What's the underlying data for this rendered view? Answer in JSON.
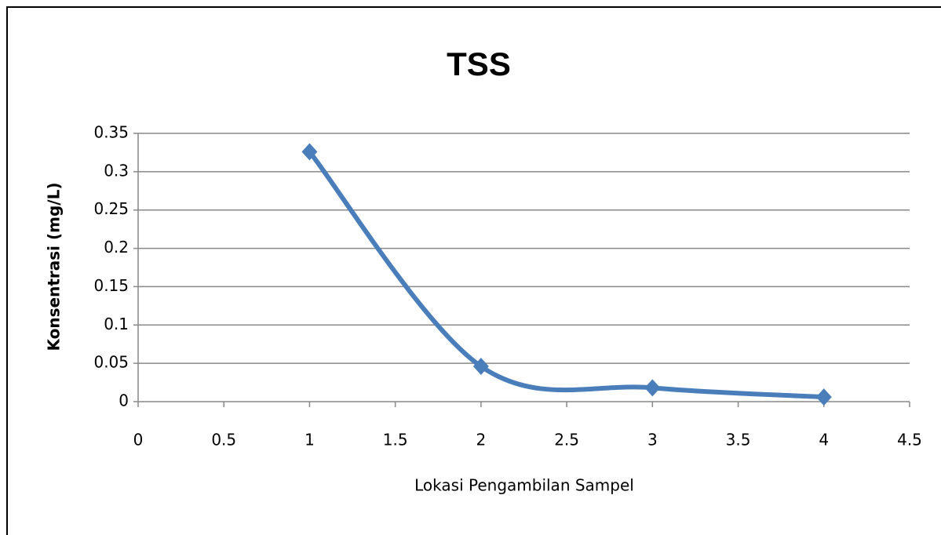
{
  "chart_data": {
    "type": "scatter",
    "title": "TSS",
    "x_label": "Lokasi Pengambilan  Sampel",
    "y_label": "Konsentrasi (mg/L)",
    "series": [
      {
        "name": "TSS",
        "color": "#4a7ebb",
        "x": [
          1,
          2,
          3,
          4
        ],
        "values": [
          0.326,
          0.046,
          0.018,
          0.006
        ]
      }
    ],
    "xlim": [
      0,
      4.5
    ],
    "xticks": [
      0,
      0.5,
      1,
      1.5,
      2,
      2.5,
      3,
      3.5,
      4,
      4.5
    ],
    "ylim": [
      0,
      0.35
    ],
    "yticks": [
      0,
      0.05,
      0.1,
      0.15,
      0.2,
      0.25,
      0.3,
      0.35
    ],
    "grid": true,
    "smooth": true
  }
}
